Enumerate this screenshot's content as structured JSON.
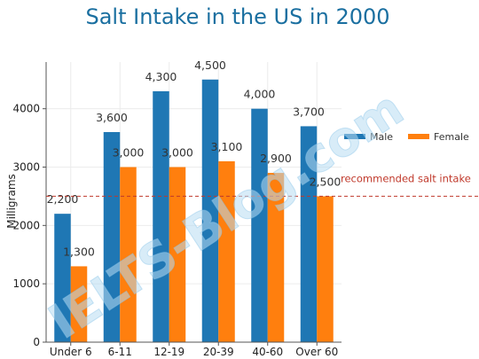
{
  "chart_data": {
    "type": "bar",
    "title": "Salt Intake in the US in 2000",
    "ylabel": "Milligrams",
    "xlabel": "",
    "categories": [
      "Under 6",
      "6-11",
      "12-19",
      "20-39",
      "40-60",
      "Over 60"
    ],
    "series": [
      {
        "name": "Male",
        "values": [
          2200,
          3600,
          4300,
          4500,
          4000,
          3700
        ],
        "color": "#1f77b4"
      },
      {
        "name": "Female",
        "values": [
          1300,
          3000,
          3000,
          3100,
          2900,
          2500
        ],
        "color": "#ff7f0e"
      }
    ],
    "data_labels": [
      [
        "2,200",
        "3,600",
        "4,300",
        "4,500",
        "4,000",
        "3,700"
      ],
      [
        "1,300",
        "3,000",
        "3,000",
        "3,100",
        "2,900",
        "2,500"
      ]
    ],
    "ylim": [
      0,
      4800
    ],
    "yticks": [
      0,
      1000,
      2000,
      3000,
      4000
    ],
    "ytick_labels": [
      "0",
      "1000",
      "2000",
      "3000",
      "4000"
    ],
    "grid": true,
    "legend_position": "right",
    "reference_line": {
      "value": 2500,
      "label": "recommended salt intake",
      "color": "#c0392b"
    },
    "watermark": "IELTS-Blog.com"
  }
}
